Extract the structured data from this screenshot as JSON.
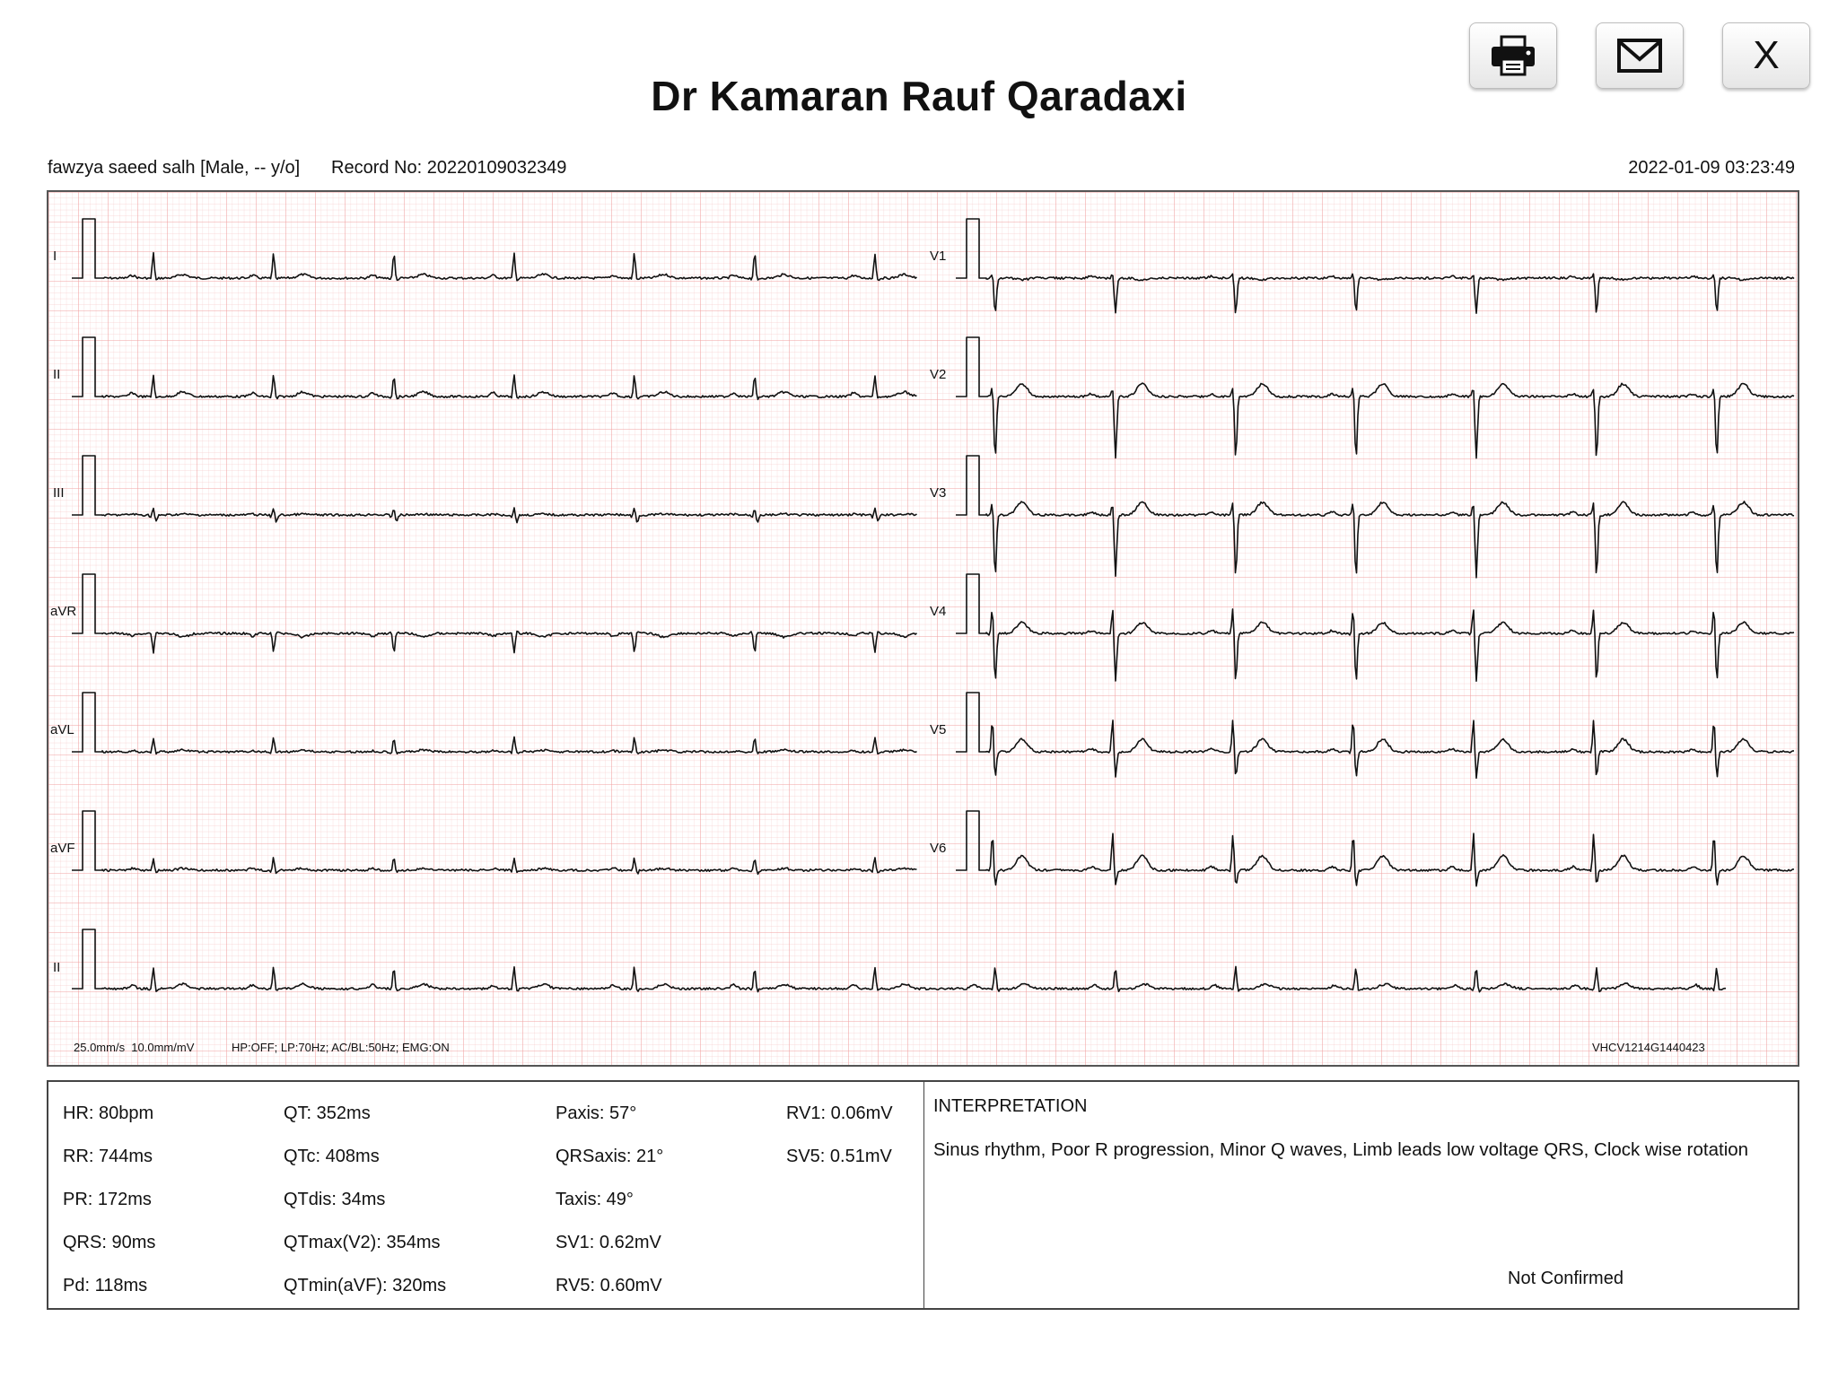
{
  "header": {
    "title": "Dr Kamaran Rauf Qaradaxi",
    "patient": "fawzya saeed salh [Male, -- y/o]",
    "record": "Record No: 20220109032349",
    "datetime": "2022-01-09 03:23:49"
  },
  "toolbar": {
    "print_icon": "printer-icon",
    "email_icon": "envelope-icon",
    "close_label": "X"
  },
  "ecg": {
    "lead_labels": [
      "I",
      "II",
      "III",
      "aVR",
      "aVL",
      "aVF",
      "V1",
      "V2",
      "V3",
      "V4",
      "V5",
      "V6",
      "II"
    ],
    "settings_left": "25.0mm/s  10.0mm/mV",
    "settings_filters": "HP:OFF; LP:70Hz; AC/BL:50Hz; EMG:ON",
    "device_id": "VHCV1214G1440423",
    "grid_color": "#f3b3b3",
    "trace_color": "#111111"
  },
  "measurements": [
    [
      "HR: 80bpm",
      "RR: 744ms",
      "PR: 172ms",
      "QRS: 90ms",
      "Pd: 118ms"
    ],
    [
      "QT: 352ms",
      "QTc: 408ms",
      "QTdis: 34ms",
      "QTmax(V2): 354ms",
      "QTmin(aVF): 320ms"
    ],
    [
      "Paxis: 57°",
      "QRSaxis: 21°",
      "Taxis: 49°",
      "SV1: 0.62mV",
      "RV5: 0.60mV"
    ],
    [
      "RV1: 0.06mV",
      "SV5: 0.51mV"
    ]
  ],
  "interpretation": {
    "title": "INTERPRETATION",
    "text": "Sinus rhythm, Poor R progression, Minor Q waves, Limb leads low voltage QRS, Clock wise rotation",
    "status": "Not Confirmed"
  }
}
